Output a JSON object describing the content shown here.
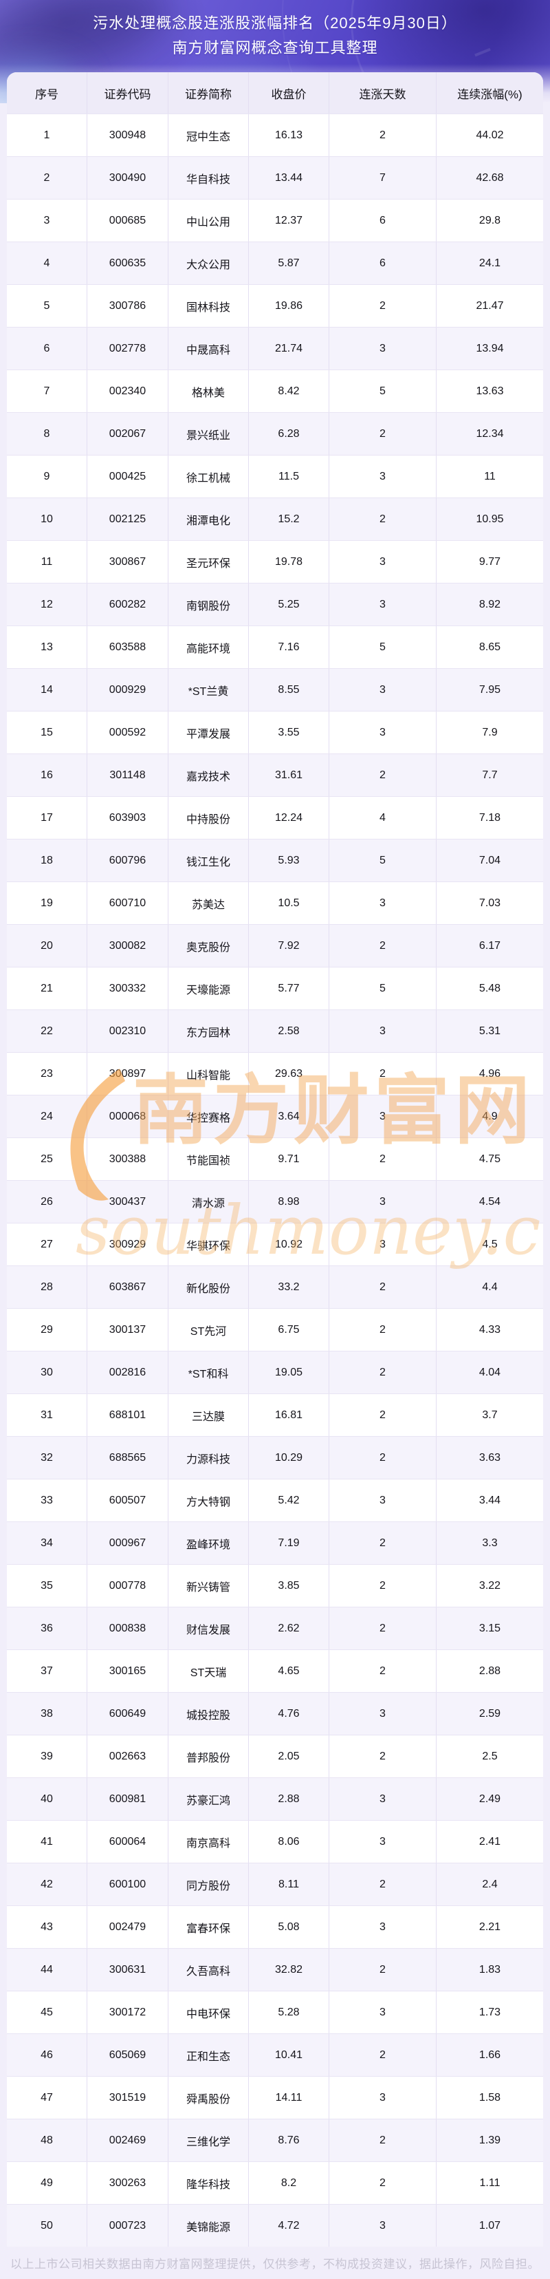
{
  "header": {
    "title_line1": "污水处理概念股连涨股涨幅排名（2025年9月30日）",
    "title_line2": "南方财富网概念查询工具整理"
  },
  "table": {
    "columns": [
      "序号",
      "证券代码",
      "证券简称",
      "收盘价",
      "连涨天数",
      "连续涨幅(%)"
    ],
    "rows": [
      [
        "1",
        "300948",
        "冠中生态",
        "16.13",
        "2",
        "44.02"
      ],
      [
        "2",
        "300490",
        "华自科技",
        "13.44",
        "7",
        "42.68"
      ],
      [
        "3",
        "000685",
        "中山公用",
        "12.37",
        "6",
        "29.8"
      ],
      [
        "4",
        "600635",
        "大众公用",
        "5.87",
        "6",
        "24.1"
      ],
      [
        "5",
        "300786",
        "国林科技",
        "19.86",
        "2",
        "21.47"
      ],
      [
        "6",
        "002778",
        "中晟高科",
        "21.74",
        "3",
        "13.94"
      ],
      [
        "7",
        "002340",
        "格林美",
        "8.42",
        "5",
        "13.63"
      ],
      [
        "8",
        "002067",
        "景兴纸业",
        "6.28",
        "2",
        "12.34"
      ],
      [
        "9",
        "000425",
        "徐工机械",
        "11.5",
        "3",
        "11"
      ],
      [
        "10",
        "002125",
        "湘潭电化",
        "15.2",
        "2",
        "10.95"
      ],
      [
        "11",
        "300867",
        "圣元环保",
        "19.78",
        "3",
        "9.77"
      ],
      [
        "12",
        "600282",
        "南钢股份",
        "5.25",
        "3",
        "8.92"
      ],
      [
        "13",
        "603588",
        "高能环境",
        "7.16",
        "5",
        "8.65"
      ],
      [
        "14",
        "000929",
        "*ST兰黄",
        "8.55",
        "3",
        "7.95"
      ],
      [
        "15",
        "000592",
        "平潭发展",
        "3.55",
        "3",
        "7.9"
      ],
      [
        "16",
        "301148",
        "嘉戎技术",
        "31.61",
        "2",
        "7.7"
      ],
      [
        "17",
        "603903",
        "中持股份",
        "12.24",
        "4",
        "7.18"
      ],
      [
        "18",
        "600796",
        "钱江生化",
        "5.93",
        "5",
        "7.04"
      ],
      [
        "19",
        "600710",
        "苏美达",
        "10.5",
        "3",
        "7.03"
      ],
      [
        "20",
        "300082",
        "奥克股份",
        "7.92",
        "2",
        "6.17"
      ],
      [
        "21",
        "300332",
        "天壕能源",
        "5.77",
        "5",
        "5.48"
      ],
      [
        "22",
        "002310",
        "东方园林",
        "2.58",
        "3",
        "5.31"
      ],
      [
        "23",
        "300897",
        "山科智能",
        "29.63",
        "2",
        "4.96"
      ],
      [
        "24",
        "000068",
        "华控赛格",
        "3.64",
        "3",
        "4.9"
      ],
      [
        "25",
        "300388",
        "节能国祯",
        "9.71",
        "2",
        "4.75"
      ],
      [
        "26",
        "300437",
        "清水源",
        "8.98",
        "3",
        "4.54"
      ],
      [
        "27",
        "300929",
        "华骐环保",
        "10.92",
        "3",
        "4.5"
      ],
      [
        "28",
        "603867",
        "新化股份",
        "33.2",
        "2",
        "4.4"
      ],
      [
        "29",
        "300137",
        "ST先河",
        "6.75",
        "2",
        "4.33"
      ],
      [
        "30",
        "002816",
        "*ST和科",
        "19.05",
        "2",
        "4.04"
      ],
      [
        "31",
        "688101",
        "三达膜",
        "16.81",
        "2",
        "3.7"
      ],
      [
        "32",
        "688565",
        "力源科技",
        "10.29",
        "2",
        "3.63"
      ],
      [
        "33",
        "600507",
        "方大特钢",
        "5.42",
        "3",
        "3.44"
      ],
      [
        "34",
        "000967",
        "盈峰环境",
        "7.19",
        "2",
        "3.3"
      ],
      [
        "35",
        "000778",
        "新兴铸管",
        "3.85",
        "2",
        "3.22"
      ],
      [
        "36",
        "000838",
        "财信发展",
        "2.62",
        "2",
        "3.15"
      ],
      [
        "37",
        "300165",
        "ST天瑞",
        "4.65",
        "2",
        "2.88"
      ],
      [
        "38",
        "600649",
        "城投控股",
        "4.76",
        "3",
        "2.59"
      ],
      [
        "39",
        "002663",
        "普邦股份",
        "2.05",
        "2",
        "2.5"
      ],
      [
        "40",
        "600981",
        "苏豪汇鸿",
        "2.88",
        "3",
        "2.49"
      ],
      [
        "41",
        "600064",
        "南京高科",
        "8.06",
        "3",
        "2.41"
      ],
      [
        "42",
        "600100",
        "同方股份",
        "8.11",
        "2",
        "2.4"
      ],
      [
        "43",
        "002479",
        "富春环保",
        "5.08",
        "3",
        "2.21"
      ],
      [
        "44",
        "300631",
        "久吾高科",
        "32.82",
        "2",
        "1.83"
      ],
      [
        "45",
        "300172",
        "中电环保",
        "5.28",
        "3",
        "1.73"
      ],
      [
        "46",
        "605069",
        "正和生态",
        "10.41",
        "2",
        "1.66"
      ],
      [
        "47",
        "301519",
        "舜禹股份",
        "14.11",
        "3",
        "1.58"
      ],
      [
        "48",
        "002469",
        "三维化学",
        "8.76",
        "2",
        "1.39"
      ],
      [
        "49",
        "300263",
        "隆华科技",
        "8.2",
        "2",
        "1.11"
      ],
      [
        "50",
        "000723",
        "美锦能源",
        "4.72",
        "3",
        "1.07"
      ]
    ]
  },
  "watermark": {
    "brand_cn": "南方财富网",
    "brand_en": "southmoney.com"
  },
  "footer": {
    "disclaimer": "以上上市公司相关数据由南方财富网整理提供，仅供参考，不构成投资建议，据此操作，风险自担。"
  },
  "colors": {
    "banner_purple": "#5a4cc9",
    "page_bg": "#f1eefa",
    "header_row_bg": "#eeebf8",
    "row_alt_bg": "#f5f3fc",
    "border": "#e3def2",
    "watermark_orange": "#f2a652",
    "footer_text": "#c7c4d3"
  }
}
